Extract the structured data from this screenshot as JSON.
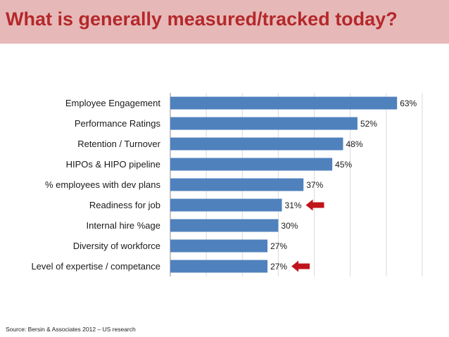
{
  "header": {
    "title": "What is generally measured/tracked today?"
  },
  "footer": {
    "source": "Source: Bersin & Associates 2012 – US research"
  },
  "colors": {
    "bar": "#4f81bd",
    "arrow": "#c0141b",
    "title": "#b4282b",
    "title_band": "#e6b9b8"
  },
  "chart_data": {
    "type": "bar",
    "orientation": "horizontal",
    "categories": [
      "Employee Engagement",
      "Performance Ratings",
      "Retention / Turnover",
      "HIPOs & HIPO pipeline",
      "% employees with dev plans",
      "Readiness for job",
      "Internal hire %age",
      "Diversity of workforce",
      "Level of expertise / competance"
    ],
    "values": [
      63,
      52,
      48,
      45,
      37,
      31,
      30,
      27,
      27
    ],
    "data_labels": [
      "63%",
      "52%",
      "48%",
      "45%",
      "37%",
      "31%",
      "30%",
      "27%",
      "27%"
    ],
    "highlighted": [
      "Readiness for job",
      "Level of expertise / competance"
    ],
    "xlim": [
      0,
      70
    ],
    "grid": true,
    "legend": "none"
  }
}
